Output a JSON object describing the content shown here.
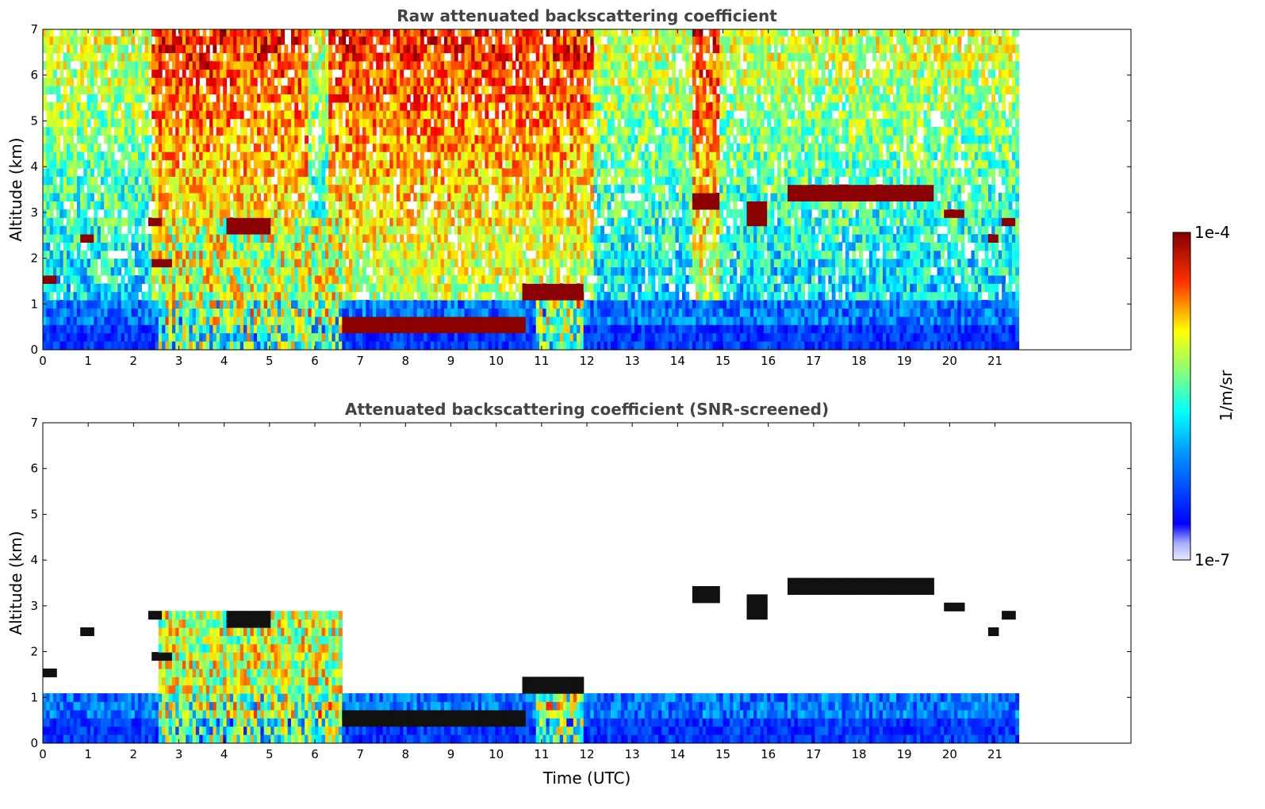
{
  "chart_data": [
    {
      "type": "heatmap",
      "title": "Raw attenuated backscattering coefficient",
      "xlabel": "",
      "ylabel": "Altitude (km)",
      "xlim": [
        0,
        24
      ],
      "ylim": [
        0,
        7
      ],
      "x_ticks": [
        0,
        1,
        2,
        3,
        4,
        5,
        6,
        7,
        8,
        9,
        10,
        11,
        12,
        13,
        14,
        15,
        16,
        17,
        18,
        19,
        20,
        21
      ],
      "y_ticks": [
        0,
        1,
        2,
        3,
        4,
        5,
        6,
        7
      ],
      "data_end_time": 21.45,
      "layers": [
        {
          "t": [
            0.0,
            0.3
          ],
          "alt": [
            1.3,
            1.6
          ]
        },
        {
          "t": [
            0.8,
            1.1
          ],
          "alt": [
            2.2,
            2.45
          ]
        },
        {
          "t": [
            2.3,
            2.6
          ],
          "alt": [
            2.6,
            2.8
          ]
        },
        {
          "t": [
            2.4,
            2.8
          ],
          "alt": [
            1.7,
            1.9
          ]
        },
        {
          "t": [
            4.0,
            5.0
          ],
          "alt": [
            2.4,
            2.8
          ]
        },
        {
          "t": [
            6.6,
            10.6
          ],
          "alt": [
            0.35,
            0.65
          ]
        },
        {
          "t": [
            10.5,
            11.9
          ],
          "alt": [
            0.9,
            1.4
          ]
        },
        {
          "t": [
            14.3,
            14.9
          ],
          "alt": [
            3.05,
            3.3
          ]
        },
        {
          "t": [
            15.5,
            15.9
          ],
          "alt": [
            2.7,
            3.1
          ]
        },
        {
          "t": [
            16.4,
            19.6
          ],
          "alt": [
            3.15,
            3.55
          ]
        },
        {
          "t": [
            19.8,
            20.3
          ],
          "alt": [
            2.85,
            3.05
          ]
        },
        {
          "t": [
            20.8,
            21.0
          ],
          "alt": [
            2.3,
            2.5
          ]
        },
        {
          "t": [
            21.1,
            21.4
          ],
          "alt": [
            2.6,
            2.8
          ]
        }
      ]
    },
    {
      "type": "heatmap",
      "title": "Attenuated backscattering coefficient (SNR-screened)",
      "xlabel": "Time (UTC)",
      "ylabel": "Altitude (km)",
      "xlim": [
        0,
        24
      ],
      "ylim": [
        0,
        7
      ],
      "x_ticks": [
        0,
        1,
        2,
        3,
        4,
        5,
        6,
        7,
        8,
        9,
        10,
        11,
        12,
        13,
        14,
        15,
        16,
        17,
        18,
        19,
        20,
        21
      ],
      "y_ticks": [
        0,
        1,
        2,
        3,
        4,
        5,
        6,
        7
      ],
      "data_end_time": 21.45
    }
  ],
  "colorbar": {
    "label": "1/m/sr",
    "max_label": "1e-4",
    "min_label": "1e-7",
    "colormap": "jet",
    "colors": [
      "#e8e8ff",
      "#0000ff",
      "#00ffff",
      "#ffff00",
      "#ff0000",
      "#800000"
    ]
  }
}
